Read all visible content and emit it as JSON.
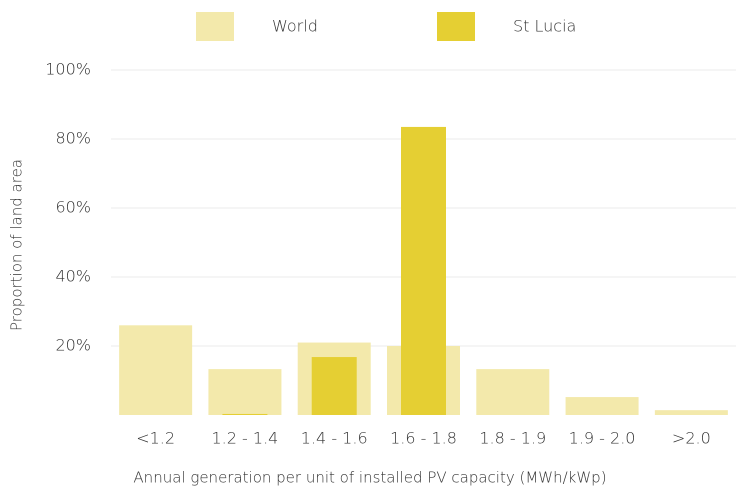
{
  "chart_data": {
    "type": "bar",
    "x_label": "Annual generation per unit of installed PV capacity (MWh/kWp)",
    "y_label": "Proportion of land area",
    "categories": [
      "<1.2",
      "1.2 - 1.4",
      "1.4 - 1.6",
      "1.6 - 1.8",
      "1.8 - 1.9",
      "1.9 - 2.0",
      ">2.0"
    ],
    "series": [
      {
        "name": "World",
        "color": "#f3e9ab",
        "values": [
          26,
          13.3,
          21,
          20,
          13.3,
          5.2,
          1.4
        ]
      },
      {
        "name": "St Lucia",
        "color": "#e5cf33",
        "values": [
          0,
          0.3,
          16.8,
          83.5,
          0,
          0,
          0
        ]
      }
    ],
    "ylim": [
      0,
      100
    ],
    "yticks": [
      {
        "value": 20,
        "label": "20%"
      },
      {
        "value": 40,
        "label": "40%"
      },
      {
        "value": 60,
        "label": "60%"
      },
      {
        "value": 80,
        "label": "80%"
      },
      {
        "value": 100,
        "label": "100%"
      }
    ],
    "grid": true,
    "legend": "top"
  }
}
